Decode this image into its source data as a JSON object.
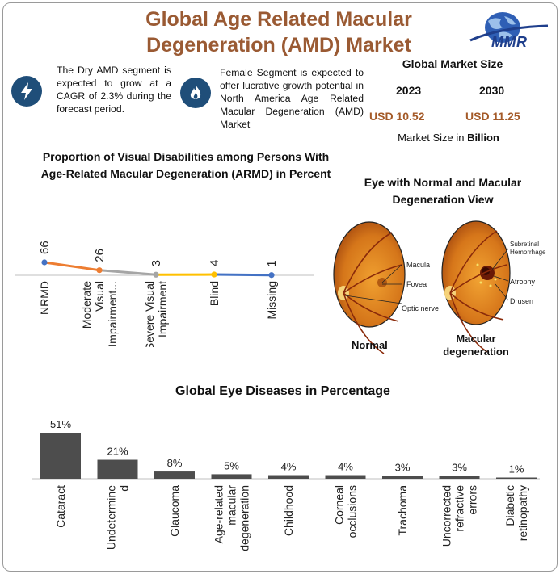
{
  "header": {
    "title_line1": "Global Age Related Macular",
    "title_line2": "Degeneration (AMD) Market",
    "logo_text": "MMR"
  },
  "highlights": [
    {
      "icon": "lightning-bolt-icon",
      "text": "The Dry AMD segment is expected to grow at a CAGR of 2.3% during the forecast period."
    },
    {
      "icon": "flame-icon",
      "text": "Female Segment is expected to offer lucrative growth potential in North America Age Related Macular Degeneration (AMD) Market"
    }
  ],
  "market_size": {
    "title": "Global Market Size",
    "year_start": "2023",
    "year_end": "2030",
    "value_start": "USD 10.52",
    "value_end": "USD 11.25",
    "unit_prefix": "Market Size in",
    "unit_bold": "Billion"
  },
  "eye_view": {
    "title_line1": "Eye with Normal and Macular",
    "title_line2": "Degeneration View",
    "normal_caption": "Normal",
    "macular_caption_1": "Macular",
    "macular_caption_2": "degeneration",
    "normal_labels": [
      "Macula",
      "Fovea",
      "Optic nerve"
    ],
    "macular_labels": [
      "Subretinal",
      "Hemorrhage",
      "Atrophy",
      "Drusen"
    ]
  },
  "colors": {
    "title": "#9a5a33",
    "usd": "#a45a28",
    "badge": "#1f4e79",
    "bar": "#4d4d4d",
    "line_orange": "#ed7d31",
    "line_gray": "#a5a5a5",
    "line_yellow": "#ffc000",
    "line_blue": "#4472c4"
  },
  "chart_data": [
    {
      "type": "line",
      "title_line1": "Proportion of Visual Disabilities among Persons With",
      "title_line2": "Age-Related Macular Degeneration (ARMD) in Percent",
      "categories": [
        [
          "NRMD"
        ],
        [
          "Moderate",
          "Visual",
          "Impairment..."
        ],
        [
          "Severe Visual",
          "Impairment"
        ],
        [
          "Blind"
        ],
        [
          "Missing"
        ]
      ],
      "values": [
        66,
        26,
        3,
        4,
        1
      ],
      "labels": [
        "66",
        "26",
        "3",
        "4",
        "1"
      ]
    },
    {
      "type": "bar",
      "title": "Global Eye Diseases in Percentage",
      "categories": [
        [
          "Cataract"
        ],
        [
          "Undetermine",
          "d"
        ],
        [
          "Glaucoma"
        ],
        [
          "Age-related",
          "macular",
          "degeneration"
        ],
        [
          "Childhood"
        ],
        [
          "Corneal",
          "occlusions"
        ],
        [
          "Trachoma"
        ],
        [
          "Uncorrected",
          "refractive",
          "errors"
        ],
        [
          "Diabetic",
          "retinopathy"
        ]
      ],
      "values": [
        51,
        21,
        8,
        5,
        4,
        4,
        3,
        3,
        1
      ],
      "labels": [
        "51%",
        "21%",
        "8%",
        "5%",
        "4%",
        "4%",
        "3%",
        "3%",
        "1%"
      ]
    }
  ]
}
